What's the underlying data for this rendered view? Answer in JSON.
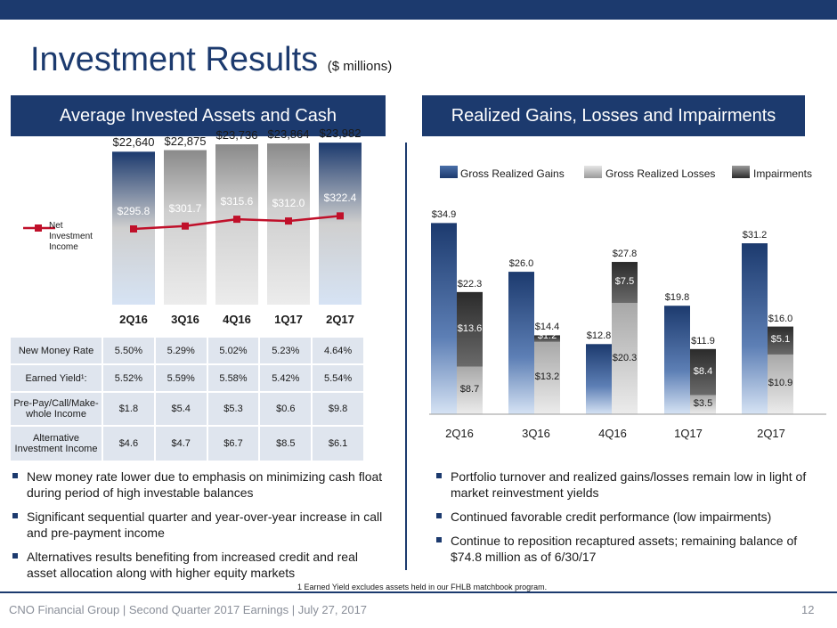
{
  "header": {
    "title": "Investment Results",
    "subtitle": "($ millions)"
  },
  "left_panel": {
    "title": "Average Invested Assets and Cash",
    "legend_label": "Net Investment Income",
    "bullets": [
      "New money rate lower due to emphasis on minimizing cash float during period of high investable balances",
      "Significant sequential quarter and year-over-year increase in call and pre-payment income",
      "Alternatives results benefiting from increased credit and real asset allocation along with higher equity markets"
    ]
  },
  "right_panel": {
    "title": "Realized Gains, Losses and Impairments",
    "bullets": [
      "Portfolio turnover and realized gains/losses remain low in light of market reinvestment yields",
      "Continued favorable credit performance (low impairments)",
      "Continue to reposition recaptured assets; remaining balance of $74.8 million as of 6/30/17"
    ]
  },
  "chart_data": [
    {
      "type": "bar",
      "categories": [
        "2Q16",
        "3Q16",
        "4Q16",
        "1Q17",
        "2Q17"
      ],
      "series": [
        {
          "name": "",
          "values": [
            22640,
            22875,
            23736,
            23864,
            23982
          ],
          "labels": [
            "$22,640",
            "$22,875",
            "$23,736",
            "$23,864",
            "$23,982"
          ]
        },
        {
          "name": "Net Investment Income",
          "type": "line",
          "values": [
            295.8,
            301.7,
            315.6,
            312.0,
            322.4
          ],
          "labels": [
            "$295.8",
            "$301.7",
            "$315.6",
            "$312.0",
            "$322.4"
          ]
        }
      ],
      "ylim": [
        0,
        25000
      ]
    },
    {
      "type": "bar",
      "categories": [
        "2Q16",
        "3Q16",
        "4Q16",
        "1Q17",
        "2Q17"
      ],
      "series": [
        {
          "name": "Gross Realized Gains",
          "values": [
            34.9,
            26.0,
            12.8,
            19.8,
            31.2
          ],
          "labels": [
            "$34.9",
            "$26.0",
            "$12.8",
            "$19.8",
            "$31.2"
          ]
        },
        {
          "name": "Gross Realized Losses",
          "values": [
            8.7,
            13.2,
            20.3,
            3.5,
            10.9
          ],
          "labels": [
            "$8.7",
            "$13.2",
            "$20.3",
            "$3.5",
            "$10.9"
          ]
        },
        {
          "name": "Impairments",
          "values": [
            13.6,
            1.2,
            7.5,
            8.4,
            5.1
          ],
          "labels": [
            "$13.6",
            "$1.2",
            "$7.5",
            "$8.4",
            "$5.1"
          ]
        }
      ],
      "totals": [
        "$22.3",
        "$14.4",
        "$27.8",
        "$11.9",
        "$16.0"
      ],
      "totals_values": [
        22.3,
        14.4,
        27.8,
        11.9,
        16.0
      ],
      "ylim": [
        0,
        35
      ]
    }
  ],
  "table": {
    "rows": [
      {
        "label": "New Money Rate",
        "values": [
          "5.50%",
          "5.29%",
          "5.02%",
          "5.23%",
          "4.64%"
        ]
      },
      {
        "label": "Earned Yield¹:",
        "values": [
          "5.52%",
          "5.59%",
          "5.58%",
          "5.42%",
          "5.54%"
        ]
      },
      {
        "label": "Pre-Pay/Call/Make-whole Income",
        "values": [
          "$1.8",
          "$5.4",
          "$5.3",
          "$0.6",
          "$9.8"
        ]
      },
      {
        "label": "Alternative Investment Income",
        "values": [
          "$4.6",
          "$4.7",
          "$6.7",
          "$8.5",
          "$6.1"
        ]
      }
    ]
  },
  "footnote": "1  Earned Yield excludes assets held in our FHLB matchbook program.",
  "footer": {
    "text": "CNO Financial Group | Second Quarter 2017 Earnings | July 27, 2017",
    "page": "12"
  },
  "colors": {
    "brand": "#1c3a6e",
    "gains_top": "#1c3a6e",
    "losses": "#bdbdbd",
    "impairments": "#4a4a4a"
  }
}
